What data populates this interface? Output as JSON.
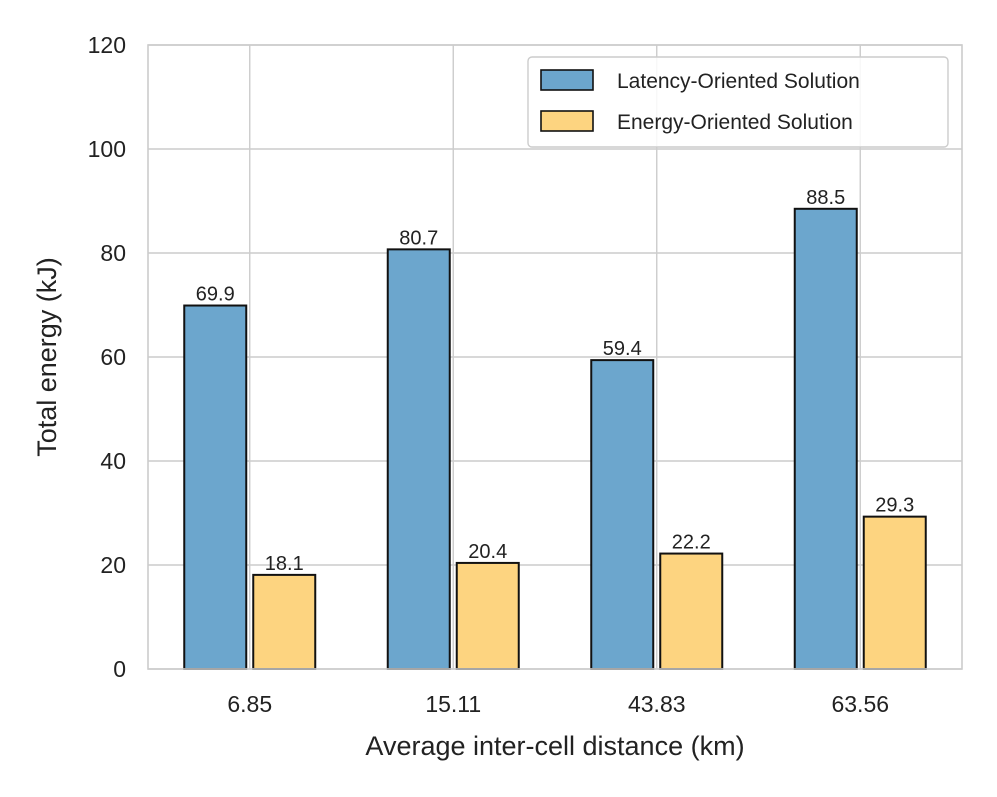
{
  "chart_data": {
    "type": "bar",
    "title": "",
    "xlabel": "Average inter-cell distance (km)",
    "ylabel": "Total energy (kJ)",
    "categories": [
      "6.85",
      "15.11",
      "43.83",
      "63.56"
    ],
    "ylim": [
      0,
      120
    ],
    "yticks": [
      0,
      20,
      40,
      60,
      80,
      100,
      120
    ],
    "grid": true,
    "legend_position": "top-right",
    "series": [
      {
        "name": "Latency-Oriented Solution",
        "values": [
          69.9,
          80.7,
          59.4,
          88.5
        ],
        "labels": [
          "69.9",
          "80.7",
          "59.4",
          "88.5"
        ],
        "color": "#6ca6cd"
      },
      {
        "name": "Energy-Oriented Solution",
        "values": [
          18.1,
          20.4,
          22.2,
          29.3
        ],
        "labels": [
          "18.1",
          "20.4",
          "22.2",
          "29.3"
        ],
        "color": "#fdd480"
      }
    ]
  }
}
